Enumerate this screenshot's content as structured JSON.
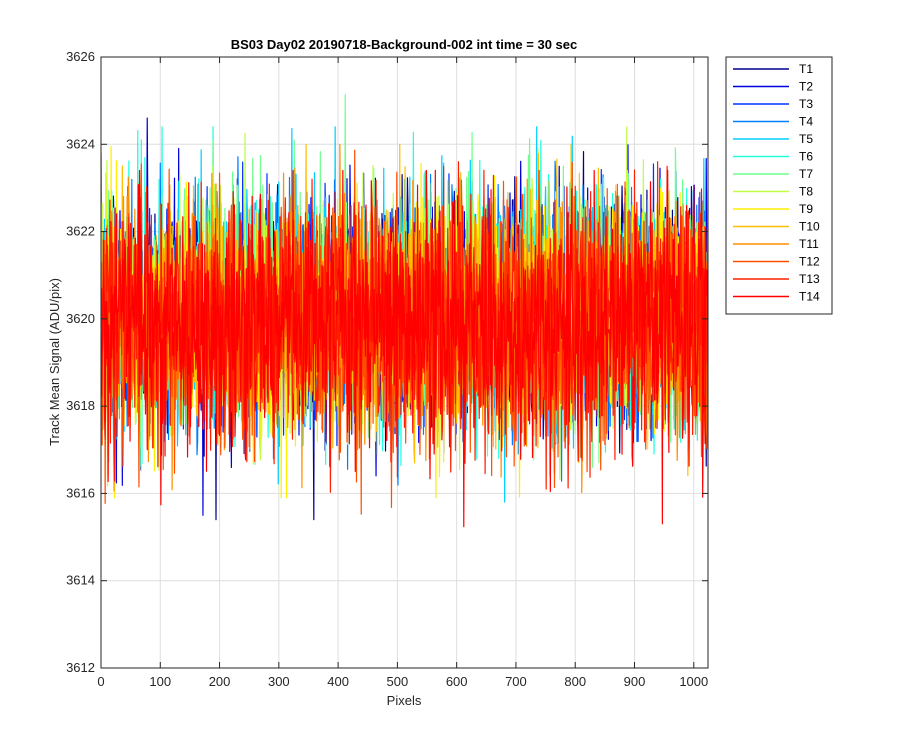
{
  "chart_data": {
    "type": "line",
    "title": "BS03 Day02 20190718-Background-002 int time = 30 sec",
    "xlabel": "Pixels",
    "ylabel": "Track Mean Signal (ADU/pix)",
    "xlim": [
      0,
      1024
    ],
    "ylim": [
      3612,
      3626
    ],
    "xticks": [
      0,
      100,
      200,
      300,
      400,
      500,
      600,
      700,
      800,
      900,
      1000
    ],
    "yticks": [
      3612,
      3614,
      3616,
      3618,
      3620,
      3622,
      3624,
      3626
    ],
    "grid": true,
    "legend_position": "outside-top-right",
    "x_step": 1,
    "series": [
      {
        "name": "T1",
        "color": "#00008f",
        "mean": 3620.2,
        "spread": 1.3,
        "min": 3615.4,
        "max": 3624.9
      },
      {
        "name": "T2",
        "color": "#0000df",
        "mean": 3620.2,
        "spread": 1.3,
        "min": 3615.5,
        "max": 3624.6
      },
      {
        "name": "T3",
        "color": "#0030ff",
        "mean": 3620.2,
        "spread": 1.3,
        "min": 3615.6,
        "max": 3624.6
      },
      {
        "name": "T4",
        "color": "#0080ff",
        "mean": 3620.2,
        "spread": 1.3,
        "min": 3615.7,
        "max": 3624.5
      },
      {
        "name": "T5",
        "color": "#00cfff",
        "mean": 3620.2,
        "spread": 1.3,
        "min": 3615.8,
        "max": 3624.4
      },
      {
        "name": "T6",
        "color": "#20ffdf",
        "mean": 3620.2,
        "spread": 1.3,
        "min": 3615.8,
        "max": 3624.4
      },
      {
        "name": "T7",
        "color": "#70ff8f",
        "mean": 3620.2,
        "spread": 1.3,
        "min": 3615.8,
        "max": 3625.3
      },
      {
        "name": "T8",
        "color": "#bfff40",
        "mean": 3620.1,
        "spread": 1.3,
        "min": 3615.8,
        "max": 3624.4
      },
      {
        "name": "T9",
        "color": "#ffef00",
        "mean": 3620.1,
        "spread": 1.3,
        "min": 3615.9,
        "max": 3624.0
      },
      {
        "name": "T10",
        "color": "#ffbf00",
        "mean": 3620.0,
        "spread": 1.3,
        "min": 3615.9,
        "max": 3624.0
      },
      {
        "name": "T11",
        "color": "#ff8f00",
        "mean": 3620.0,
        "spread": 1.3,
        "min": 3615.6,
        "max": 3624.0
      },
      {
        "name": "T12",
        "color": "#ff5000",
        "mean": 3619.9,
        "spread": 1.4,
        "min": 3614.0,
        "max": 3624.0
      },
      {
        "name": "T13",
        "color": "#ff1f00",
        "mean": 3619.9,
        "spread": 1.4,
        "min": 3614.3,
        "max": 3623.6
      },
      {
        "name": "T14",
        "color": "#ff0000",
        "mean": 3619.8,
        "spread": 1.4,
        "min": 3613.9,
        "max": 3623.4
      }
    ]
  }
}
